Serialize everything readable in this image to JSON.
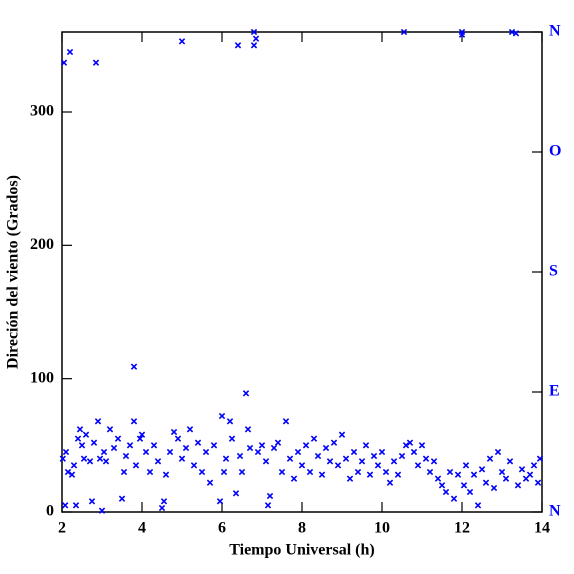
{
  "chart_data": {
    "type": "scatter",
    "x_label": "Tiempo Universal (h)",
    "y_label": "Direción del viento (Grados)",
    "xlim": [
      2,
      14
    ],
    "xticks": [
      2,
      4,
      6,
      8,
      10,
      12,
      14
    ],
    "ylim": [
      0,
      360
    ],
    "yticks": [
      0,
      100,
      200,
      300
    ],
    "y2lim": [
      0,
      360
    ],
    "y2ticks": [
      {
        "value": 0,
        "label": "N"
      },
      {
        "value": 90,
        "label": "E"
      },
      {
        "value": 180,
        "label": "S"
      },
      {
        "value": 270,
        "label": "O"
      },
      {
        "value": 360,
        "label": "N"
      }
    ],
    "y2_color": "#0000ff",
    "grid": false,
    "series": [
      {
        "color": "#0000ff",
        "x": [
          2.02,
          2.05,
          2.08,
          2.1,
          2.15,
          2.2,
          2.25,
          2.3,
          2.35,
          2.4,
          2.45,
          2.5,
          2.55,
          2.6,
          2.7,
          2.75,
          2.8,
          2.85,
          2.9,
          2.95,
          3.0,
          3.05,
          3.1,
          3.2,
          3.3,
          3.4,
          3.5,
          3.55,
          3.6,
          3.7,
          3.8,
          3.8,
          3.85,
          3.95,
          4.0,
          4.1,
          4.2,
          4.3,
          4.4,
          4.5,
          4.55,
          4.6,
          4.7,
          4.8,
          4.9,
          5.0,
          5.0,
          5.1,
          5.2,
          5.3,
          5.4,
          5.5,
          5.6,
          5.7,
          5.8,
          5.95,
          6.0,
          6.05,
          6.1,
          6.2,
          6.25,
          6.35,
          6.4,
          6.45,
          6.5,
          6.6,
          6.65,
          6.7,
          6.8,
          6.8,
          6.85,
          6.9,
          7.0,
          7.1,
          7.15,
          7.2,
          7.3,
          7.4,
          7.5,
          7.6,
          7.7,
          7.8,
          7.9,
          8.0,
          8.1,
          8.2,
          8.3,
          8.4,
          8.5,
          8.6,
          8.7,
          8.8,
          8.9,
          9.0,
          9.1,
          9.2,
          9.3,
          9.4,
          9.5,
          9.6,
          9.7,
          9.8,
          9.9,
          10.0,
          10.1,
          10.2,
          10.3,
          10.4,
          10.5,
          10.55,
          10.6,
          10.7,
          10.8,
          10.9,
          11.0,
          11.1,
          11.2,
          11.3,
          11.4,
          11.5,
          11.6,
          11.7,
          11.8,
          11.9,
          12.0,
          12.0,
          12.05,
          12.1,
          12.2,
          12.3,
          12.4,
          12.5,
          12.6,
          12.7,
          12.8,
          12.9,
          13.0,
          13.1,
          13.2,
          13.25,
          13.35,
          13.4,
          13.5,
          13.6,
          13.7,
          13.8,
          13.9,
          13.95
        ],
        "values": [
          40,
          337,
          5,
          45,
          30,
          345,
          28,
          35,
          5,
          55,
          62,
          50,
          40,
          58,
          38,
          8,
          52,
          337,
          68,
          40,
          1,
          45,
          38,
          62,
          48,
          55,
          10,
          30,
          42,
          50,
          109,
          68,
          35,
          55,
          58,
          45,
          30,
          50,
          38,
          3,
          8,
          28,
          45,
          60,
          55,
          353,
          40,
          48,
          62,
          35,
          52,
          30,
          45,
          22,
          50,
          8,
          72,
          30,
          40,
          68,
          55,
          14,
          350,
          42,
          30,
          89,
          62,
          48,
          350,
          360,
          355,
          45,
          50,
          38,
          5,
          12,
          48,
          52,
          30,
          68,
          40,
          25,
          45,
          35,
          50,
          30,
          55,
          42,
          28,
          48,
          38,
          52,
          35,
          58,
          40,
          25,
          45,
          30,
          38,
          50,
          28,
          42,
          35,
          45,
          30,
          22,
          38,
          28,
          42,
          360,
          50,
          52,
          45,
          35,
          50,
          40,
          30,
          38,
          25,
          20,
          15,
          30,
          10,
          28,
          358,
          360,
          20,
          35,
          15,
          28,
          5,
          32,
          22,
          40,
          18,
          45,
          30,
          25,
          38,
          360,
          359,
          20,
          32,
          25,
          28,
          35,
          22,
          40
        ]
      }
    ]
  }
}
